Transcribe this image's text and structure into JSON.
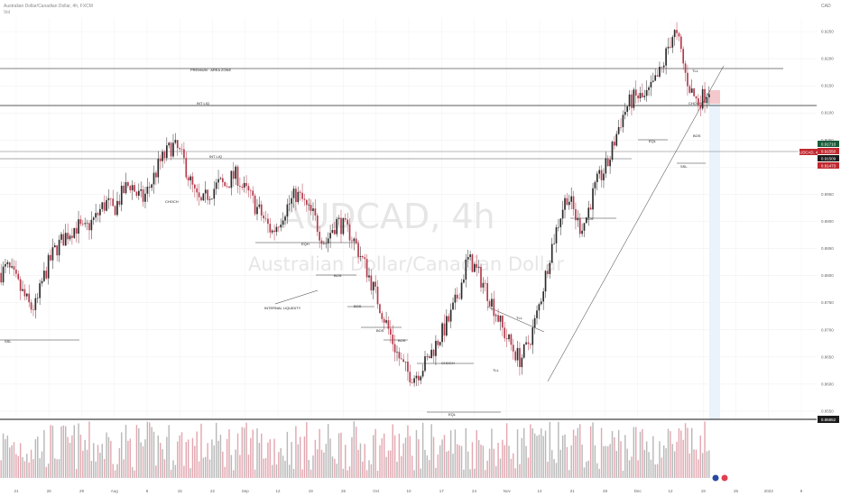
{
  "header": {
    "symbol_line": "Australian Dollar/Canadian Dollar, 4h, FXCM",
    "indicator": "Vol"
  },
  "watermark": {
    "ticker": "AUDCAD, 4h",
    "name": "Australian Dollar/Canadian Dollar"
  },
  "currency": "CAD",
  "chart_data": {
    "type": "candlestick",
    "title": "AUDCAD, 4h",
    "ylim": [
      0.8535,
      0.9275
    ],
    "y_ticks": [
      0.925,
      0.92,
      0.915,
      0.91,
      0.905,
      0.9,
      0.895,
      0.89,
      0.885,
      0.88,
      0.875,
      0.87,
      0.865,
      0.86,
      0.855
    ],
    "x_ticks": [
      "21",
      "26",
      "29",
      "Aug",
      "8",
      "15",
      "22",
      "Sep",
      "12",
      "19",
      "26",
      "Oct",
      "10",
      "17",
      "24",
      "Nov",
      "14",
      "21",
      "28",
      "Dec",
      "12",
      "19",
      "26",
      "2023",
      "9"
    ],
    "price_path": [
      [
        0.8805,
        0.8815,
        0.88,
        0.878,
        0.876,
        0.874,
        0.8745,
        0.879,
        0.882,
        0.8845,
        0.886,
        0.8875,
        0.8885,
        0.8892,
        0.888,
        0.8895,
        0.8905,
        0.8925,
        0.8935,
        0.892,
        0.894,
        0.896,
        0.897,
        0.895,
        0.894,
        0.896,
        0.8985,
        0.901,
        0.9025,
        0.904,
        0.903,
        0.901,
        0.8975,
        0.8945,
        0.893,
        0.895,
        0.896,
        0.897,
        0.8965,
        0.898,
        0.8985,
        0.896,
        0.895,
        0.893,
        0.8915,
        0.8895,
        0.888,
        0.89,
        0.892,
        0.8935,
        0.895,
        0.894,
        0.892,
        0.891,
        0.888,
        0.886,
        0.8885,
        0.89,
        0.889,
        0.888,
        0.886,
        0.8835,
        0.881,
        0.878,
        0.875,
        0.872,
        0.869,
        0.866,
        0.8635,
        0.862,
        0.8615,
        0.8625,
        0.864,
        0.866,
        0.868,
        0.87,
        0.872,
        0.875,
        0.8785,
        0.883,
        0.882,
        0.88,
        0.878,
        0.8755,
        0.873,
        0.87,
        0.868,
        0.866,
        0.8645,
        0.8665,
        0.8695,
        0.8735,
        0.8785,
        0.884,
        0.888,
        0.892,
        0.895,
        0.892,
        0.889,
        0.89,
        0.894,
        0.897,
        0.899,
        0.901,
        0.905,
        0.9085,
        0.911,
        0.9125,
        0.913,
        0.9125,
        0.914,
        0.916,
        0.918,
        0.922,
        0.925,
        0.9225,
        0.917,
        0.914,
        0.912,
        0.913,
        0.9145
      ]
    ],
    "volume_scale": "relative",
    "current_price": "0.91509",
    "price_badges": [
      "0.91710",
      "0.91550",
      "0.91509",
      "0.91473"
    ],
    "low_badge": "0.85852",
    "annotations": [
      "PREMIUM · AREA ZONE",
      "INT LIQ",
      "INT LIQ",
      "CHOCH",
      "BOS",
      "BOS",
      "BOS",
      "BOS",
      "BOS",
      "INTERNAL LIQUIDITY",
      "CHOCH",
      "SSL",
      "EQH",
      "TLL",
      "TLL",
      "TLL",
      "SSL",
      "CHOCH",
      "BOS",
      "EQL",
      "EQL"
    ]
  },
  "colors": {
    "bull": "#2a2a2a",
    "bear": "#b5394b",
    "grid": "#eeeeee",
    "line": "#333333",
    "badge_green": "#1a5c3a",
    "badge_red": "#c0282f",
    "badge_dark": "#1b1b1b"
  }
}
